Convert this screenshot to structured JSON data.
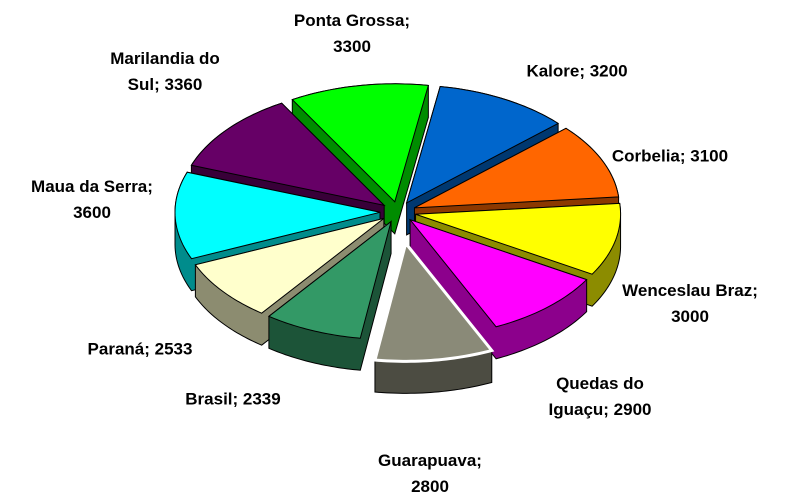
{
  "chart_data": {
    "type": "pie3d",
    "values": [
      3300,
      3200,
      3100,
      3000,
      2900,
      2800,
      2339,
      2533,
      3600,
      3360
    ],
    "value_labels": [
      "Ponta Grossa; 3300",
      "Kalore; 3200",
      "Corbelia; 3100",
      "Wenceslau Braz; 3000",
      "Quedas do Iguaçu; 2900",
      "Guarapuava; 2800",
      "Brasil; 2339",
      "Paraná; 2533",
      "Maua da Serra; 3600",
      "Marilandia do Sul; 3360"
    ],
    "colors": [
      "#00ff00",
      "#0066cc",
      "#ff6600",
      "#ffff00",
      "#ff00ff",
      "#8a8a78",
      "#339966",
      "#ffffcc",
      "#00ffff",
      "#660066"
    ]
  }
}
